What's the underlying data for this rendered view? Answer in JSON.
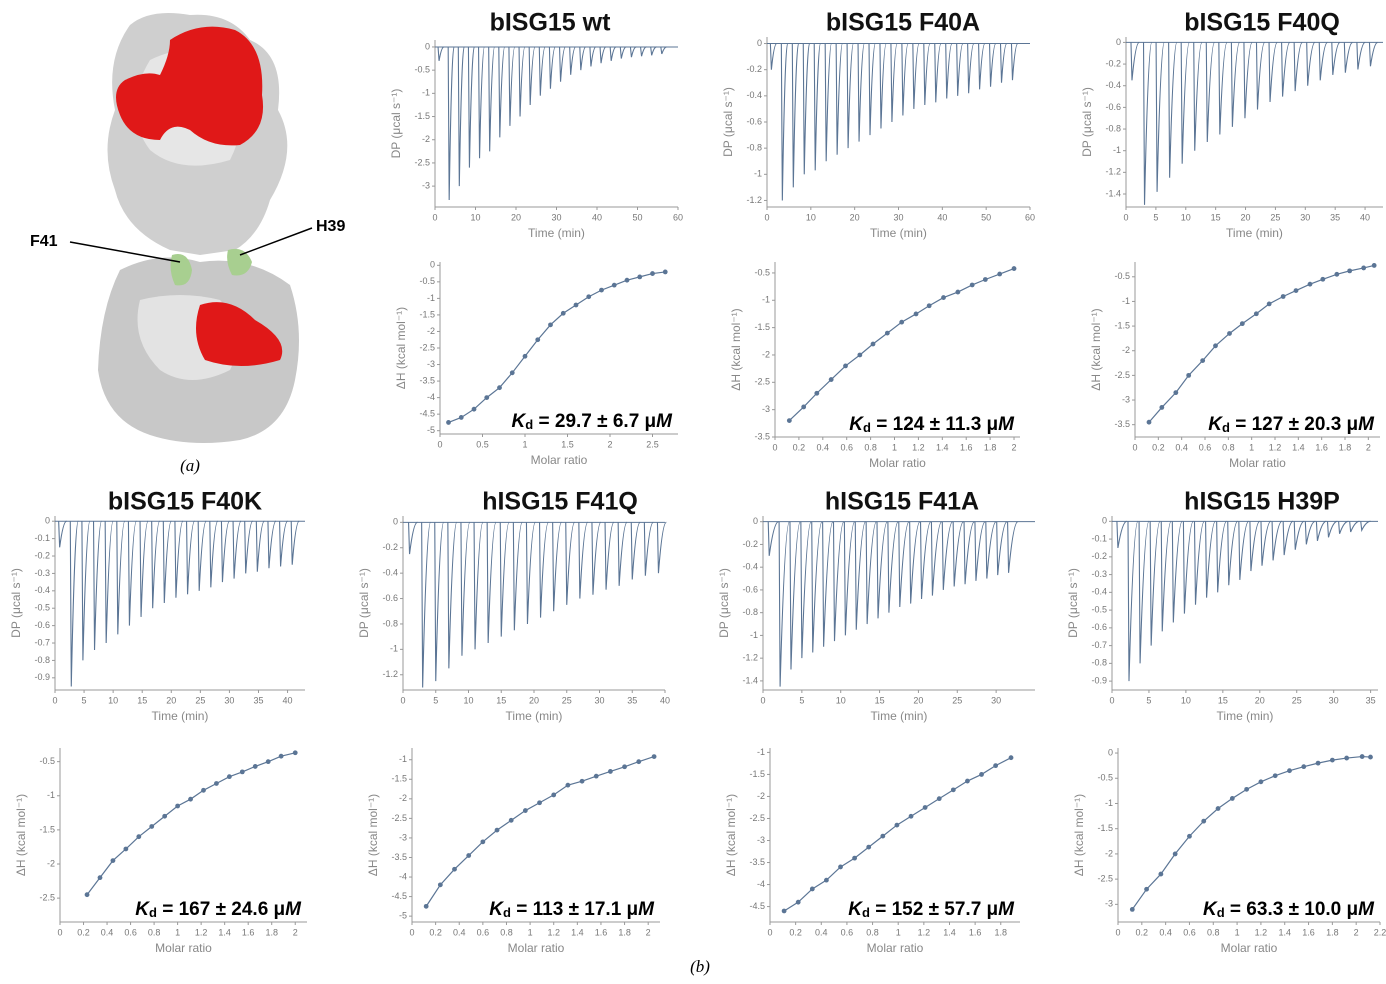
{
  "figure": {
    "panel_a_labels": [
      "F41",
      "H39"
    ],
    "caption_a": "(a)",
    "caption_b": "(b)"
  },
  "chart_data": [
    {
      "type": "thermogram",
      "title": "bISG15 wt",
      "xlabel": "Time (min)",
      "ylabel": "DP (μcal s⁻¹)",
      "color": "#5b7595",
      "x": [
        1,
        3.5,
        6,
        8.5,
        11,
        13.5,
        16,
        18.5,
        21,
        23.5,
        26,
        28.5,
        31,
        33.5,
        36,
        38.5,
        41,
        43.5,
        46,
        48.5,
        51,
        53.5,
        56
      ],
      "values": [
        -0.3,
        -3.3,
        -3.0,
        -2.6,
        -2.4,
        -2.25,
        -1.95,
        -1.7,
        -1.5,
        -1.25,
        -1.05,
        -0.9,
        -0.75,
        -0.6,
        -0.5,
        -0.42,
        -0.35,
        -0.3,
        -0.25,
        -0.22,
        -0.2,
        -0.18,
        -0.15
      ],
      "xlim": [
        0,
        60
      ],
      "ylim": [
        -3.45,
        0.15
      ],
      "xticks": [
        0,
        10,
        20,
        30,
        40,
        50,
        60
      ],
      "yticks": [
        0,
        -0.5,
        -1,
        -1.5,
        -2,
        -2.5,
        -3
      ]
    },
    {
      "type": "scatter",
      "xlabel": "Molar ratio",
      "ylabel": "ΔH (kcal mol⁻¹)",
      "color": "#5b7595",
      "annotation": {
        "symbol": "K",
        "subscript": "d",
        "text": " = 29.7 ± 6.7 μ",
        "unit": "M"
      },
      "x": [
        0.1,
        0.25,
        0.4,
        0.55,
        0.7,
        0.85,
        1.0,
        1.15,
        1.3,
        1.45,
        1.6,
        1.75,
        1.9,
        2.05,
        2.2,
        2.35,
        2.5,
        2.65
      ],
      "values": [
        -4.75,
        -4.6,
        -4.35,
        -4.0,
        -3.7,
        -3.25,
        -2.75,
        -2.25,
        -1.8,
        -1.45,
        -1.2,
        -0.95,
        -0.75,
        -0.6,
        -0.45,
        -0.35,
        -0.25,
        -0.2
      ],
      "xlim": [
        0,
        2.8
      ],
      "ylim": [
        -5.1,
        0.1
      ],
      "xticks": [
        0,
        0.5,
        1,
        1.5,
        2,
        2.5
      ],
      "yticks": [
        0,
        -0.5,
        -1,
        -1.5,
        -2,
        -2.5,
        -3,
        -3.5,
        -4,
        -4.5,
        -5
      ]
    },
    {
      "type": "thermogram",
      "title": "bISG15 F40A",
      "xlabel": "Time (min)",
      "ylabel": "DP (μcal s⁻¹)",
      "color": "#5b7595",
      "x": [
        1,
        3.5,
        6,
        8.5,
        11,
        13.5,
        16,
        18.5,
        21,
        23.5,
        26,
        28.5,
        31,
        33.5,
        36,
        38.5,
        41,
        43.5,
        46,
        48.5,
        51,
        53.5,
        56
      ],
      "values": [
        -0.2,
        -1.2,
        -1.1,
        -1.0,
        -0.97,
        -0.9,
        -0.85,
        -0.8,
        -0.75,
        -0.7,
        -0.65,
        -0.6,
        -0.55,
        -0.5,
        -0.47,
        -0.45,
        -0.42,
        -0.4,
        -0.38,
        -0.35,
        -0.33,
        -0.3,
        -0.28
      ],
      "xlim": [
        0,
        60
      ],
      "ylim": [
        -1.25,
        0.05
      ],
      "xticks": [
        0,
        10,
        20,
        30,
        40,
        50,
        60
      ],
      "yticks": [
        0,
        -0.2,
        -0.4,
        -0.6,
        -0.8,
        -1,
        -1.2
      ]
    },
    {
      "type": "scatter",
      "xlabel": "Molar ratio",
      "ylabel": "ΔH (kcal mol⁻¹)",
      "color": "#5b7595",
      "annotation": {
        "symbol": "K",
        "subscript": "d",
        "text": " = 124 ± 11.3 μ",
        "unit": "M"
      },
      "x": [
        0.12,
        0.24,
        0.35,
        0.47,
        0.59,
        0.71,
        0.82,
        0.94,
        1.06,
        1.18,
        1.29,
        1.41,
        1.53,
        1.65,
        1.76,
        1.88,
        2.0
      ],
      "values": [
        -3.2,
        -2.95,
        -2.7,
        -2.45,
        -2.2,
        -2.0,
        -1.8,
        -1.6,
        -1.4,
        -1.25,
        -1.1,
        -0.95,
        -0.85,
        -0.72,
        -0.62,
        -0.52,
        -0.42
      ],
      "xlim": [
        0,
        2.05
      ],
      "ylim": [
        -3.5,
        -0.3
      ],
      "xticks": [
        0,
        0.2,
        0.4,
        0.6,
        0.8,
        1,
        1.2,
        1.4,
        1.6,
        1.8,
        2
      ],
      "yticks": [
        -0.5,
        -1,
        -1.5,
        -2,
        -2.5,
        -3,
        -3.5
      ]
    },
    {
      "type": "thermogram",
      "title": "bISG15 F40Q",
      "xlabel": "Time (min)",
      "ylabel": "DP (μcal s⁻¹)",
      "color": "#5b7595",
      "x": [
        1,
        3.1,
        5.2,
        7.3,
        9.4,
        11.5,
        13.6,
        15.7,
        17.8,
        19.9,
        22,
        24.1,
        26.2,
        28.3,
        30.4,
        32.5,
        34.6,
        36.7,
        38.8,
        40.9
      ],
      "values": [
        -0.35,
        -1.5,
        -1.38,
        -1.25,
        -1.12,
        -1.0,
        -0.92,
        -0.85,
        -0.78,
        -0.7,
        -0.62,
        -0.55,
        -0.5,
        -0.45,
        -0.4,
        -0.35,
        -0.3,
        -0.28,
        -0.25,
        -0.22
      ],
      "xlim": [
        0,
        43
      ],
      "ylim": [
        -1.52,
        0.05
      ],
      "xticks": [
        0,
        5,
        10,
        15,
        20,
        25,
        30,
        35,
        40
      ],
      "yticks": [
        0,
        -0.2,
        -0.4,
        -0.6,
        -0.8,
        -1,
        -1.2,
        -1.4
      ]
    },
    {
      "type": "scatter",
      "xlabel": "Molar ratio",
      "ylabel": "ΔH (kcal mol⁻¹)",
      "color": "#5b7595",
      "annotation": {
        "symbol": "K",
        "subscript": "d",
        "text": " = 127 ± 20.3 μ",
        "unit": "M"
      },
      "x": [
        0.12,
        0.23,
        0.35,
        0.46,
        0.58,
        0.69,
        0.81,
        0.92,
        1.04,
        1.15,
        1.27,
        1.38,
        1.5,
        1.61,
        1.73,
        1.84,
        1.96,
        2.05
      ],
      "values": [
        -3.45,
        -3.15,
        -2.85,
        -2.5,
        -2.2,
        -1.9,
        -1.65,
        -1.45,
        -1.25,
        -1.05,
        -0.9,
        -0.78,
        -0.65,
        -0.55,
        -0.45,
        -0.38,
        -0.32,
        -0.27
      ],
      "xlim": [
        0,
        2.1
      ],
      "ylim": [
        -3.75,
        -0.2
      ],
      "xticks": [
        0,
        0.2,
        0.4,
        0.6,
        0.8,
        1,
        1.2,
        1.4,
        1.6,
        1.8,
        2
      ],
      "yticks": [
        -0.5,
        -1,
        -1.5,
        -2,
        -2.5,
        -3,
        -3.5
      ]
    },
    {
      "type": "thermogram",
      "title": "bISG15 F40K",
      "xlabel": "Time (min)",
      "ylabel": "DP (μcal s⁻¹)",
      "color": "#5b7595",
      "x": [
        0.8,
        2.8,
        4.8,
        6.8,
        8.8,
        10.8,
        12.8,
        14.8,
        16.8,
        18.8,
        20.8,
        22.8,
        24.8,
        26.8,
        28.8,
        30.8,
        32.8,
        34.8,
        36.8,
        38.8,
        40.8
      ],
      "values": [
        -0.15,
        -0.95,
        -0.8,
        -0.74,
        -0.7,
        -0.65,
        -0.6,
        -0.55,
        -0.5,
        -0.47,
        -0.44,
        -0.42,
        -0.4,
        -0.38,
        -0.35,
        -0.33,
        -0.3,
        -0.29,
        -0.27,
        -0.26,
        -0.25
      ],
      "xlim": [
        0,
        43
      ],
      "ylim": [
        -0.97,
        0.03
      ],
      "xticks": [
        0,
        5,
        10,
        15,
        20,
        25,
        30,
        35,
        40
      ],
      "yticks": [
        0,
        -0.1,
        -0.2,
        -0.3,
        -0.4,
        -0.5,
        -0.6,
        -0.7,
        -0.8,
        -0.9
      ]
    },
    {
      "type": "scatter",
      "xlabel": "Molar ratio",
      "ylabel": "ΔH (kcal mol⁻¹)",
      "color": "#5b7595",
      "annotation": {
        "symbol": "K",
        "subscript": "d",
        "text": " = 167 ± 24.6 μ",
        "unit": "M"
      },
      "x": [
        0.23,
        0.34,
        0.45,
        0.56,
        0.67,
        0.78,
        0.89,
        1.0,
        1.11,
        1.22,
        1.33,
        1.44,
        1.55,
        1.66,
        1.77,
        1.88,
        2.0
      ],
      "values": [
        -2.45,
        -2.2,
        -1.95,
        -1.78,
        -1.6,
        -1.45,
        -1.3,
        -1.15,
        -1.05,
        -0.92,
        -0.82,
        -0.72,
        -0.65,
        -0.57,
        -0.5,
        -0.42,
        -0.37
      ],
      "xlim": [
        0,
        2.1
      ],
      "ylim": [
        -2.85,
        -0.3
      ],
      "xticks": [
        0,
        0.2,
        0.4,
        0.6,
        0.8,
        1,
        1.2,
        1.4,
        1.6,
        1.8,
        2
      ],
      "yticks": [
        -0.5,
        -1,
        -1.5,
        -2,
        -2.5
      ]
    },
    {
      "type": "thermogram",
      "title": "hISG15 F41Q",
      "xlabel": "Time (min)",
      "ylabel": "DP (μcal s⁻¹)",
      "color": "#5b7595",
      "x": [
        1,
        3,
        5,
        7,
        9,
        11,
        13,
        15,
        17,
        19,
        21,
        23,
        25,
        27,
        29,
        31,
        33,
        35,
        37,
        39
      ],
      "values": [
        -0.25,
        -1.3,
        -1.25,
        -1.15,
        -1.05,
        -1.0,
        -0.95,
        -0.9,
        -0.85,
        -0.8,
        -0.75,
        -0.7,
        -0.65,
        -0.6,
        -0.57,
        -0.53,
        -0.5,
        -0.45,
        -0.42,
        -0.4
      ],
      "xlim": [
        0,
        40
      ],
      "ylim": [
        -1.32,
        0.05
      ],
      "xticks": [
        0,
        5,
        10,
        15,
        20,
        25,
        30,
        35,
        40
      ],
      "yticks": [
        0,
        -0.2,
        -0.4,
        -0.6,
        -0.8,
        -1,
        -1.2
      ]
    },
    {
      "type": "scatter",
      "xlabel": "Molar ratio",
      "ylabel": "ΔH (kcal mol⁻¹)",
      "color": "#5b7595",
      "annotation": {
        "symbol": "K",
        "subscript": "d",
        "text": " = 113 ± 17.1 μ",
        "unit": "M"
      },
      "x": [
        0.12,
        0.24,
        0.36,
        0.48,
        0.6,
        0.72,
        0.84,
        0.96,
        1.08,
        1.2,
        1.32,
        1.44,
        1.56,
        1.68,
        1.8,
        1.92,
        2.05
      ],
      "values": [
        -4.75,
        -4.2,
        -3.8,
        -3.45,
        -3.1,
        -2.8,
        -2.55,
        -2.3,
        -2.1,
        -1.9,
        -1.65,
        -1.55,
        -1.42,
        -1.3,
        -1.18,
        -1.05,
        -0.92
      ],
      "xlim": [
        0,
        2.1
      ],
      "ylim": [
        -5.15,
        -0.7
      ],
      "xticks": [
        0,
        0.2,
        0.4,
        0.6,
        0.8,
        1,
        1.2,
        1.4,
        1.6,
        1.8,
        2
      ],
      "yticks": [
        -1,
        -1.5,
        -2,
        -2.5,
        -3,
        -3.5,
        -4,
        -4.5,
        -5
      ]
    },
    {
      "type": "thermogram",
      "title": "hISG15 F41A",
      "xlabel": "Time (min)",
      "ylabel": "DP (μcal s⁻¹)",
      "color": "#5b7595",
      "x": [
        0.8,
        2.2,
        3.6,
        5,
        6.4,
        7.8,
        9.2,
        10.6,
        12,
        13.4,
        14.8,
        16.2,
        17.6,
        19,
        20.4,
        21.8,
        23.2,
        24.6,
        26,
        27.4,
        28.8,
        30.2,
        31.6
      ],
      "values": [
        -0.3,
        -1.45,
        -1.3,
        -1.2,
        -1.15,
        -1.1,
        -1.05,
        -1.0,
        -0.95,
        -0.9,
        -0.85,
        -0.8,
        -0.75,
        -0.72,
        -0.68,
        -0.65,
        -0.6,
        -0.57,
        -0.55,
        -0.52,
        -0.5,
        -0.47,
        -0.45
      ],
      "xlim": [
        0,
        35
      ],
      "ylim": [
        -1.48,
        0.05
      ],
      "xticks": [
        0,
        5,
        10,
        15,
        20,
        25,
        30
      ],
      "yticks": [
        0,
        -0.2,
        -0.4,
        -0.6,
        -0.8,
        -1,
        -1.2,
        -1.4
      ]
    },
    {
      "type": "scatter",
      "xlabel": "Molar ratio",
      "ylabel": "ΔH (kcal mol⁻¹)",
      "color": "#5b7595",
      "annotation": {
        "symbol": "K",
        "subscript": "d",
        "text": " = 152 ± 57.7 μ",
        "unit": "M"
      },
      "x": [
        0.11,
        0.22,
        0.33,
        0.44,
        0.55,
        0.66,
        0.77,
        0.88,
        0.99,
        1.1,
        1.21,
        1.32,
        1.43,
        1.54,
        1.65,
        1.76,
        1.88
      ],
      "values": [
        -4.6,
        -4.4,
        -4.1,
        -3.9,
        -3.6,
        -3.4,
        -3.15,
        -2.9,
        -2.65,
        -2.45,
        -2.25,
        -2.05,
        -1.85,
        -1.65,
        -1.5,
        -1.3,
        -1.12
      ],
      "xlim": [
        0,
        1.95
      ],
      "ylim": [
        -4.85,
        -0.9
      ],
      "xticks": [
        0,
        0.2,
        0.4,
        0.6,
        0.8,
        1,
        1.2,
        1.4,
        1.6,
        1.8
      ],
      "yticks": [
        -1,
        -1.5,
        -2,
        -2.5,
        -3,
        -3.5,
        -4,
        -4.5
      ]
    },
    {
      "type": "thermogram",
      "title": "hISG15 H39P",
      "xlabel": "Time (min)",
      "ylabel": "DP (μcal s⁻¹)",
      "color": "#5b7595",
      "x": [
        0.8,
        2.3,
        3.8,
        5.3,
        6.8,
        8.3,
        9.8,
        11.3,
        12.8,
        14.3,
        15.8,
        17.3,
        18.8,
        20.3,
        21.8,
        23.3,
        24.8,
        26.3,
        27.8,
        29.3,
        30.8,
        32.3,
        33.8
      ],
      "values": [
        -0.15,
        -0.9,
        -0.8,
        -0.7,
        -0.62,
        -0.57,
        -0.52,
        -0.47,
        -0.43,
        -0.4,
        -0.36,
        -0.33,
        -0.28,
        -0.25,
        -0.22,
        -0.19,
        -0.16,
        -0.13,
        -0.11,
        -0.09,
        -0.07,
        -0.06,
        -0.05
      ],
      "xlim": [
        0,
        36
      ],
      "ylim": [
        -0.95,
        0.03
      ],
      "xticks": [
        0,
        5,
        10,
        15,
        20,
        25,
        30,
        35
      ],
      "yticks": [
        0,
        -0.1,
        -0.2,
        -0.3,
        -0.4,
        -0.5,
        -0.6,
        -0.7,
        -0.8,
        -0.9
      ]
    },
    {
      "type": "scatter",
      "xlabel": "Molar ratio",
      "ylabel": "ΔH (kcal mol⁻¹)",
      "color": "#5b7595",
      "annotation": {
        "symbol": "K",
        "subscript": "d",
        "text": " = 63.3 ± 10.0 μ",
        "unit": "M"
      },
      "x": [
        0.12,
        0.24,
        0.36,
        0.48,
        0.6,
        0.72,
        0.84,
        0.96,
        1.08,
        1.2,
        1.32,
        1.44,
        1.56,
        1.68,
        1.8,
        1.92,
        2.05,
        2.12
      ],
      "values": [
        -3.1,
        -2.7,
        -2.4,
        -2.0,
        -1.65,
        -1.35,
        -1.1,
        -0.9,
        -0.72,
        -0.57,
        -0.45,
        -0.35,
        -0.27,
        -0.2,
        -0.14,
        -0.1,
        -0.07,
        -0.08
      ],
      "xlim": [
        0,
        2.2
      ],
      "ylim": [
        -3.35,
        0.1
      ],
      "xticks": [
        0,
        0.2,
        0.4,
        0.6,
        0.8,
        1,
        1.2,
        1.4,
        1.6,
        1.8,
        2,
        2.2
      ],
      "yticks": [
        0,
        -0.5,
        -1,
        -1.5,
        -2,
        -2.5,
        -3
      ]
    }
  ]
}
